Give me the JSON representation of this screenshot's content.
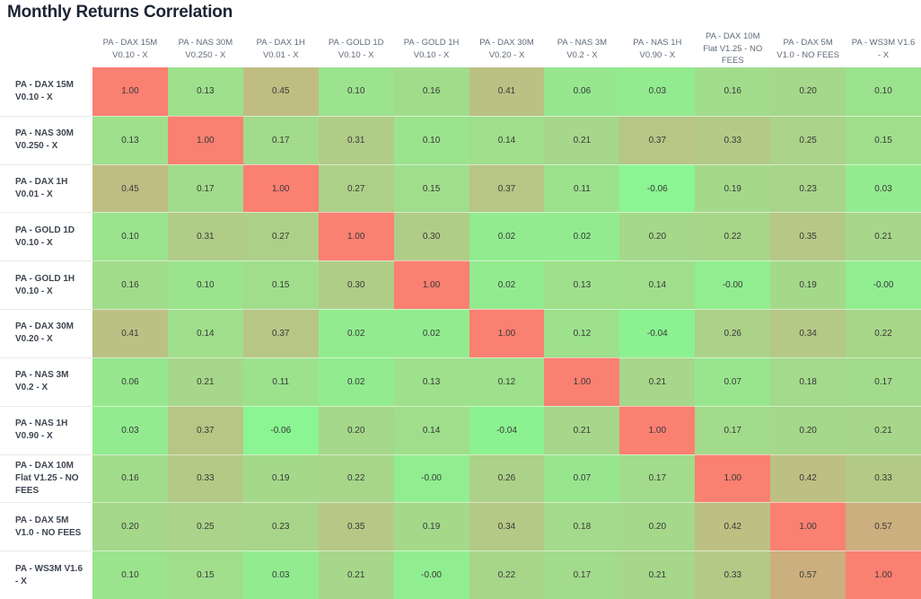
{
  "chart_data": {
    "type": "heatmap",
    "title": "Monthly Returns Correlation",
    "labels": [
      "PA - DAX 15M V0.10 - X",
      "PA - NAS 30M V0.250 - X",
      "PA - DAX 1H V0.01 - X",
      "PA - GOLD 1D V0.10 - X",
      "PA - GOLD 1H V0.10 - X",
      "PA - DAX 30M V0.20 - X",
      "PA - NAS 3M V0.2 - X",
      "PA - NAS 1H V0.90 - X",
      "PA - DAX 10M Flat V1.25 - NO FEES",
      "PA - DAX 5M V1.0 - NO FEES",
      "PA - WS3M V1.6 - X"
    ],
    "matrix": [
      [
        "1.00",
        "0.13",
        "0.45",
        "0.10",
        "0.16",
        "0.41",
        "0.06",
        "0.03",
        "0.16",
        "0.20",
        "0.10"
      ],
      [
        "0.13",
        "1.00",
        "0.17",
        "0.31",
        "0.10",
        "0.14",
        "0.21",
        "0.37",
        "0.33",
        "0.25",
        "0.15"
      ],
      [
        "0.45",
        "0.17",
        "1.00",
        "0.27",
        "0.15",
        "0.37",
        "0.11",
        "-0.06",
        "0.19",
        "0.23",
        "0.03"
      ],
      [
        "0.10",
        "0.31",
        "0.27",
        "1.00",
        "0.30",
        "0.02",
        "0.02",
        "0.20",
        "0.22",
        "0.35",
        "0.21"
      ],
      [
        "0.16",
        "0.10",
        "0.15",
        "0.30",
        "1.00",
        "0.02",
        "0.13",
        "0.14",
        "-0.00",
        "0.19",
        "-0.00"
      ],
      [
        "0.41",
        "0.14",
        "0.37",
        "0.02",
        "0.02",
        "1.00",
        "0.12",
        "-0.04",
        "0.26",
        "0.34",
        "0.22"
      ],
      [
        "0.06",
        "0.21",
        "0.11",
        "0.02",
        "0.13",
        "0.12",
        "1.00",
        "0.21",
        "0.07",
        "0.18",
        "0.17"
      ],
      [
        "0.03",
        "0.37",
        "-0.06",
        "0.20",
        "0.14",
        "-0.04",
        "0.21",
        "1.00",
        "0.17",
        "0.20",
        "0.21"
      ],
      [
        "0.16",
        "0.33",
        "0.19",
        "0.22",
        "-0.00",
        "0.26",
        "0.07",
        "0.17",
        "1.00",
        "0.42",
        "0.33"
      ],
      [
        "0.20",
        "0.25",
        "0.23",
        "0.35",
        "0.19",
        "0.34",
        "0.18",
        "0.20",
        "0.42",
        "1.00",
        "0.57"
      ],
      [
        "0.10",
        "0.15",
        "0.03",
        "0.21",
        "-0.00",
        "0.22",
        "0.17",
        "0.21",
        "0.33",
        "0.57",
        "1.00"
      ]
    ],
    "colorscale": {
      "low_value": 0,
      "high_value": 1,
      "low_color": "#90ee90",
      "high_color": "#fa8072"
    },
    "layout": {
      "legend": "none",
      "grid": "off",
      "value_format": "2-decimal"
    }
  },
  "colors": {
    "title_text": "#1b2434",
    "column_header_text": "#5f6b7a",
    "row_header_text": "#3e4651",
    "cell_text": "#383838",
    "background": "#ffffff"
  }
}
